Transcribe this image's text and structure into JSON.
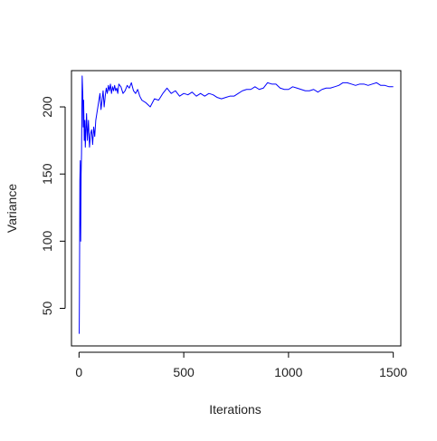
{
  "chart_data": {
    "type": "line",
    "title": "",
    "xlabel": "Iterations",
    "ylabel": "Variance",
    "xlim": [
      -36,
      1536
    ],
    "ylim": [
      22,
      227
    ],
    "xticks": [
      0,
      500,
      1000,
      1500
    ],
    "yticks": [
      50,
      100,
      150,
      200
    ],
    "xtick_labels": [
      "0",
      "500",
      "1000",
      "1500"
    ],
    "ytick_labels": [
      "50",
      "100",
      "150",
      "200"
    ],
    "grid": false,
    "legend": "none",
    "series": [
      {
        "color": "#0000ff",
        "x": [
          1,
          2,
          3,
          4,
          6,
          8,
          10,
          12,
          15,
          18,
          20,
          22,
          25,
          28,
          30,
          33,
          36,
          40,
          45,
          50,
          55,
          60,
          65,
          70,
          75,
          80,
          85,
          90,
          95,
          100,
          105,
          110,
          115,
          120,
          125,
          130,
          135,
          140,
          145,
          150,
          155,
          160,
          165,
          170,
          175,
          180,
          185,
          190,
          200,
          210,
          220,
          230,
          240,
          250,
          260,
          270,
          280,
          290,
          300,
          320,
          340,
          360,
          380,
          400,
          420,
          440,
          460,
          480,
          500,
          520,
          540,
          560,
          580,
          600,
          620,
          640,
          660,
          680,
          700,
          720,
          740,
          760,
          780,
          800,
          820,
          840,
          860,
          880,
          900,
          920,
          940,
          960,
          980,
          1000,
          1020,
          1040,
          1060,
          1080,
          1100,
          1120,
          1140,
          1160,
          1180,
          1200,
          1220,
          1240,
          1260,
          1280,
          1300,
          1320,
          1340,
          1360,
          1380,
          1400,
          1420,
          1440,
          1460,
          1480,
          1500
        ],
        "y": [
          31,
          60,
          100,
          145,
          160,
          100,
          150,
          165,
          223,
          210,
          185,
          205,
          175,
          190,
          170,
          182,
          195,
          175,
          190,
          170,
          180,
          183,
          172,
          185,
          178,
          190,
          195,
          200,
          205,
          210,
          198,
          205,
          212,
          200,
          208,
          214,
          210,
          216,
          212,
          217,
          210,
          215,
          212,
          216,
          212,
          214,
          210,
          217,
          215,
          210,
          212,
          216,
          214,
          218,
          212,
          210,
          213,
          208,
          205,
          203,
          200,
          206,
          205,
          210,
          214,
          210,
          212,
          208,
          210,
          209,
          211,
          208,
          210,
          208,
          210,
          209,
          207,
          206,
          207,
          208,
          208,
          210,
          212,
          213,
          213,
          215,
          213,
          214,
          218,
          217,
          217,
          214,
          213,
          213,
          215,
          214,
          213,
          212,
          212,
          213,
          211,
          213,
          214,
          214,
          215,
          216,
          218,
          218,
          217,
          216,
          217,
          217,
          216,
          217,
          218,
          216,
          216,
          215,
          215
        ]
      }
    ]
  }
}
